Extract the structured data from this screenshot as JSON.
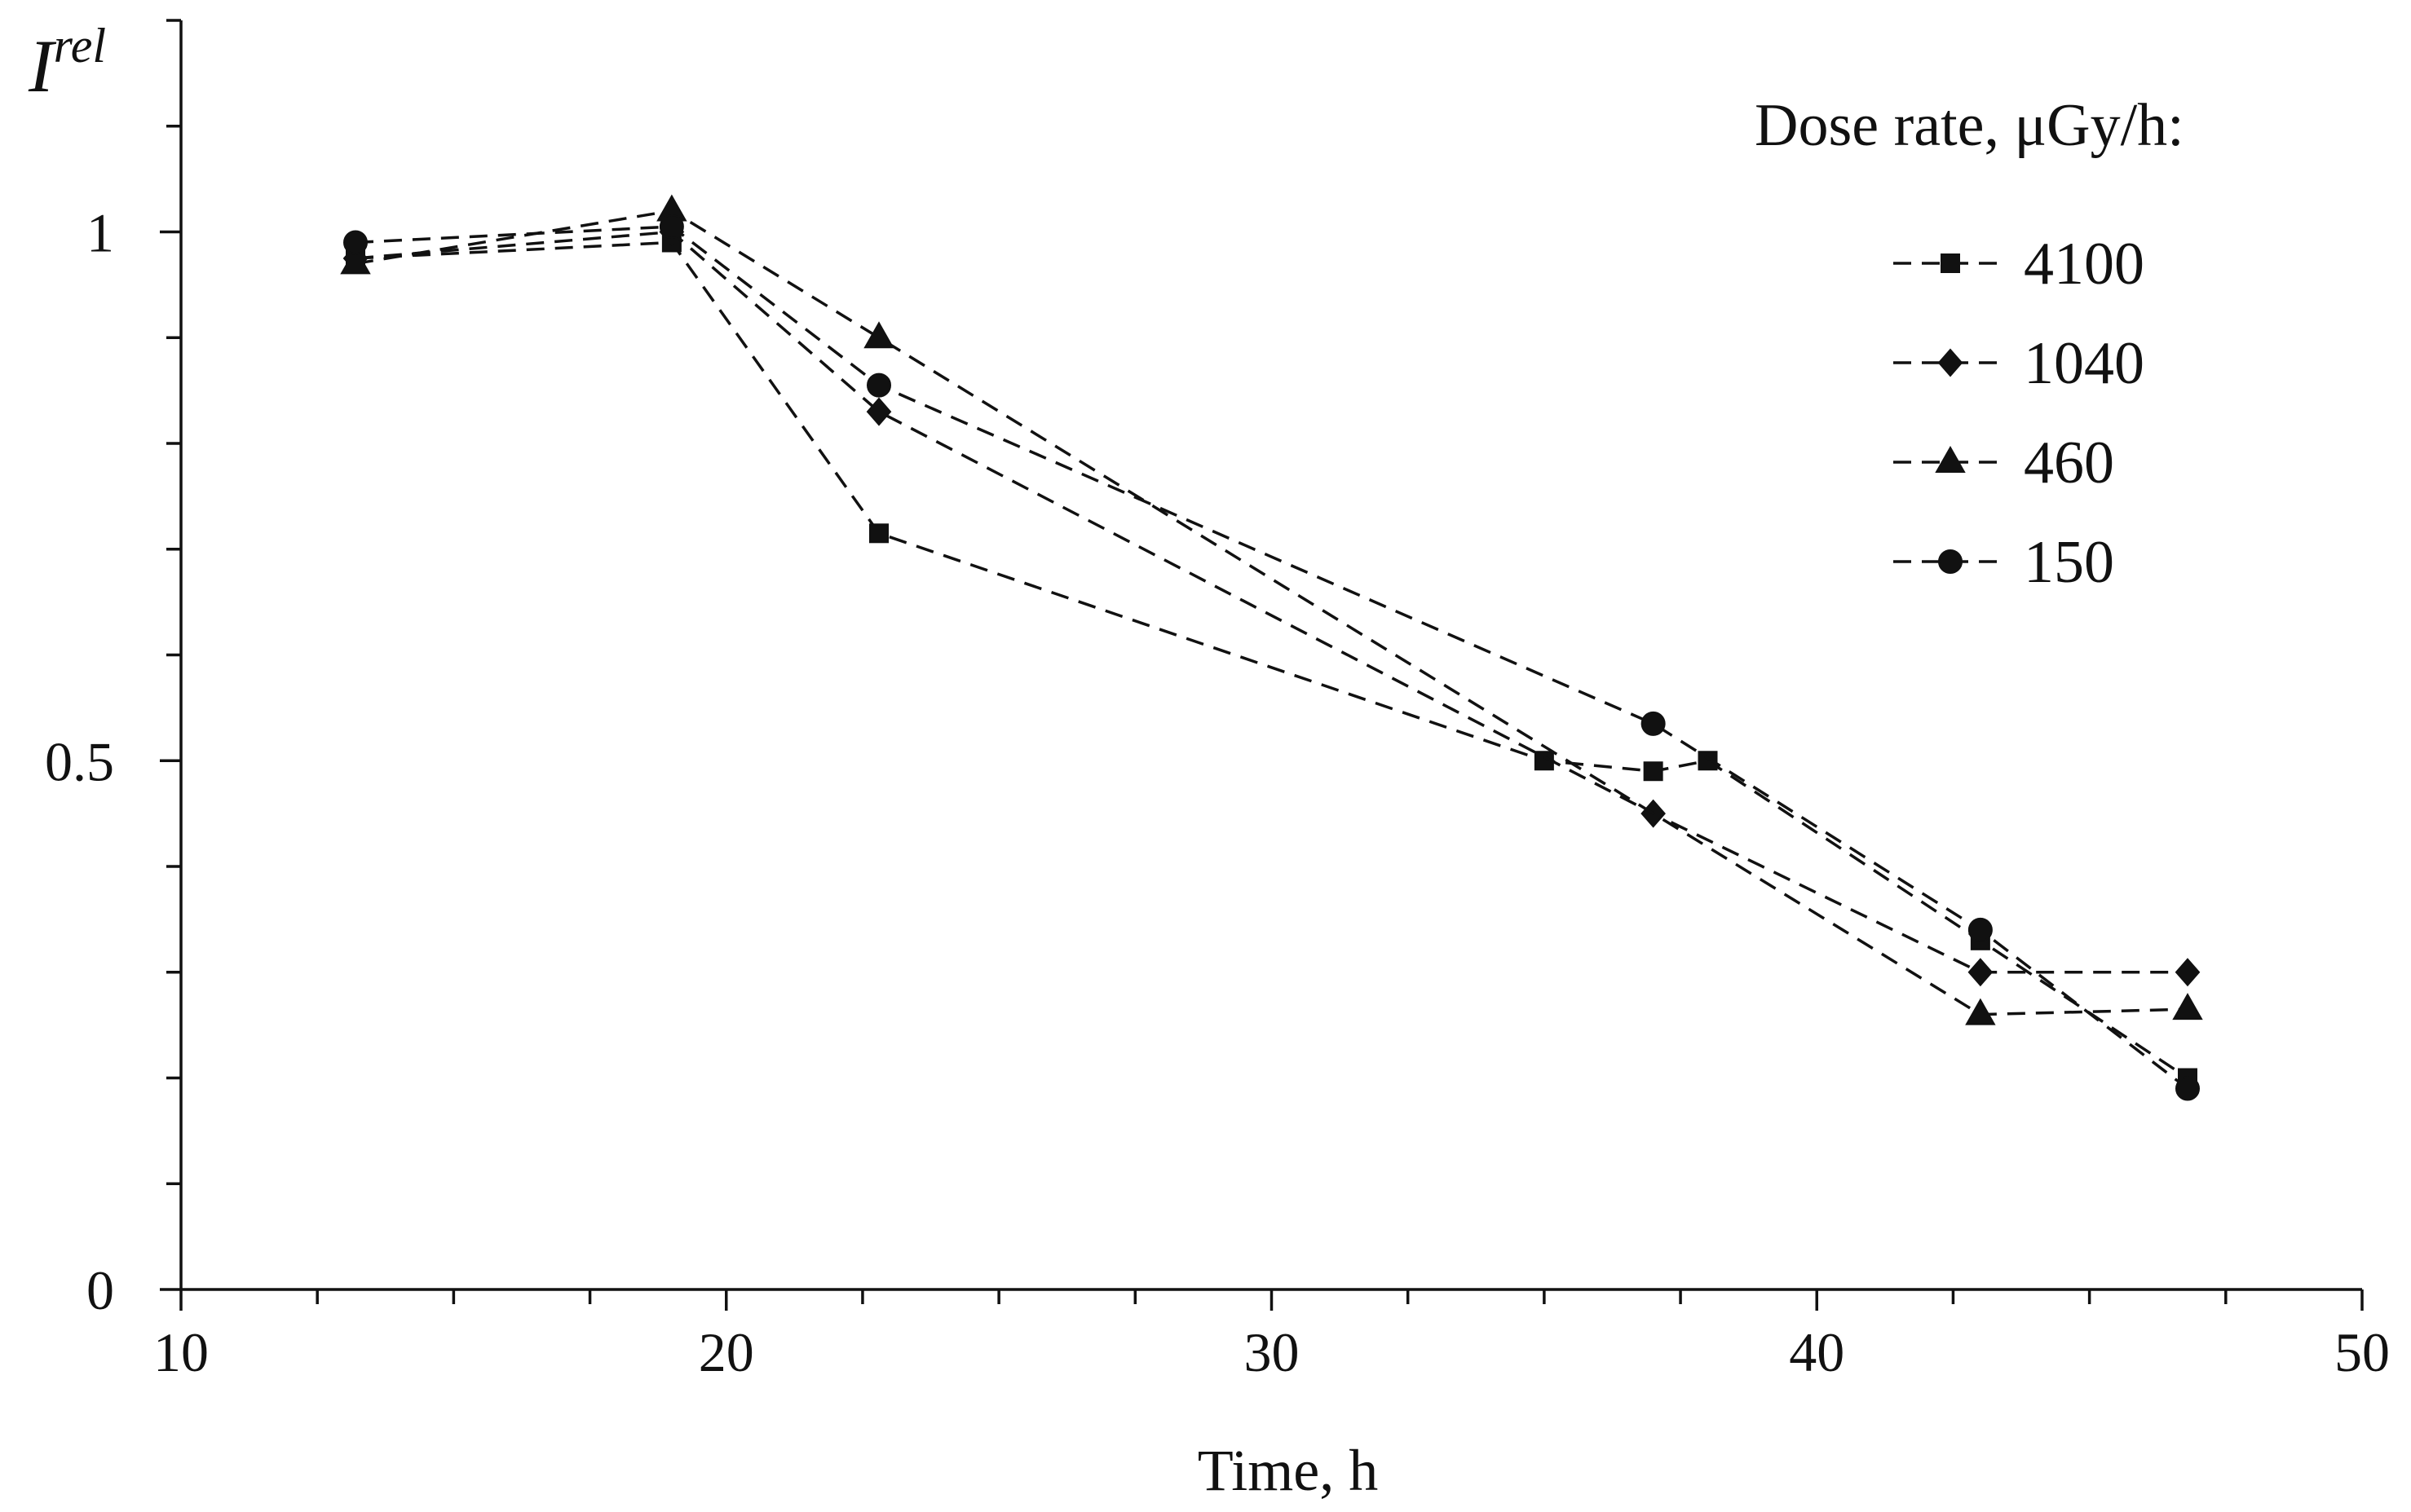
{
  "chart_data": {
    "type": "line",
    "title": "",
    "xlabel": "Time,  h",
    "ylabel": "I",
    "ylabel_sup": "rel",
    "xlim": [
      10,
      50
    ],
    "ylim": [
      0,
      1.2
    ],
    "xticks": [
      10,
      20,
      30,
      40,
      50
    ],
    "xtick_labels": [
      "10",
      "20",
      "30",
      "40",
      "50"
    ],
    "x_minor_step": 2.5,
    "yticks": [
      0,
      0.5,
      1
    ],
    "ytick_labels": [
      "0",
      "0.5",
      "1"
    ],
    "y_minor_step": 0.1,
    "grid": false,
    "legend_title": "Dose rate,  μGy/h:",
    "legend_position": "top-right",
    "series": [
      {
        "name": "4100",
        "marker": "square",
        "points": [
          [
            13.2,
            0.975
          ],
          [
            19.0,
            0.99
          ],
          [
            22.8,
            0.715
          ],
          [
            35.0,
            0.5
          ],
          [
            37.0,
            0.49
          ],
          [
            38.0,
            0.5
          ],
          [
            43.0,
            0.33
          ],
          [
            46.8,
            0.2
          ]
        ]
      },
      {
        "name": "1040",
        "marker": "diamond",
        "points": [
          [
            13.2,
            0.975
          ],
          [
            19.0,
            1.0
          ],
          [
            22.8,
            0.83
          ],
          [
            37.0,
            0.45
          ],
          [
            43.0,
            0.3
          ],
          [
            46.8,
            0.3
          ]
        ]
      },
      {
        "name": "460",
        "marker": "triangle",
        "points": [
          [
            13.2,
            0.97
          ],
          [
            19.0,
            1.02
          ],
          [
            22.8,
            0.9
          ],
          [
            43.0,
            0.26
          ],
          [
            46.8,
            0.265
          ]
        ]
      },
      {
        "name": "150",
        "marker": "circle",
        "points": [
          [
            13.2,
            0.99
          ],
          [
            19.0,
            1.005
          ],
          [
            22.8,
            0.855
          ],
          [
            37.0,
            0.535
          ],
          [
            43.0,
            0.34
          ],
          [
            46.8,
            0.19
          ]
        ]
      }
    ]
  }
}
